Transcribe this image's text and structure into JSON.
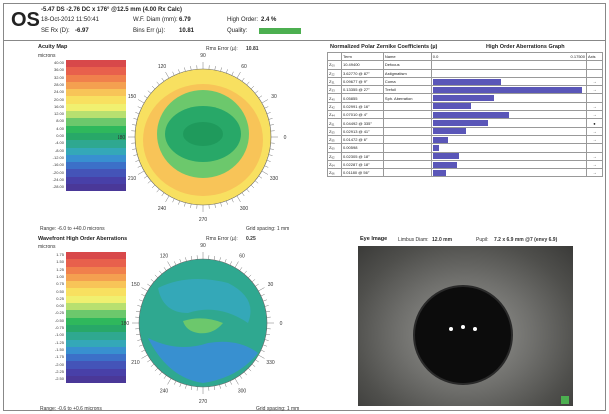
{
  "header": {
    "eye": "OS",
    "rx": "-5.47 DS -2.76 DC x 176° @12.5 mm (4.00 Rx Calc)",
    "datetime": "18-Oct-2012 11:50:41",
    "wf_diam_label": "W.F. Diam (mm):",
    "wf_diam_value": "6.79",
    "high_order_label": "High Order:",
    "high_order_value": "2.4 %",
    "se_label": "SE Rx (D):",
    "se_value": "-6.97",
    "bins_label": "Bins Err (µ):",
    "bins_value": "10.81",
    "quality_label": "Quality:"
  },
  "acuity_map": {
    "title": "Acuity Map",
    "unit": "microns",
    "rms_label": "Rms Error (µ):",
    "rms_value": "10.81",
    "range": "Range: -6.0 to +40.0 microns",
    "grid": "Grid spacing: 1 mm",
    "scale_labels": [
      "40.00",
      "36.00",
      "32.00",
      "28.00",
      "24.00",
      "20.00",
      "16.00",
      "12.00",
      "8.00",
      "4.00",
      "0.00",
      "-4.00",
      "-8.00",
      "-12.00",
      "-16.00",
      "-20.00",
      "-24.00",
      "-28.00"
    ],
    "scale_colors": [
      "#d8484a",
      "#e8604c",
      "#f0804c",
      "#f4a050",
      "#f8c458",
      "#f8e060",
      "#f0f070",
      "#b8e070",
      "#6cc86c",
      "#2fb85c",
      "#28a868",
      "#2fa890",
      "#34a8b8",
      "#3890d0",
      "#3c70c8",
      "#4454b8",
      "#4840a8",
      "#4a3898"
    ],
    "angles": [
      "90",
      "120",
      "150",
      "180",
      "210",
      "240",
      "270",
      "300",
      "330",
      "0",
      "30",
      "60"
    ]
  },
  "wavefront_map": {
    "title": "Wavefront High Order Aberrations",
    "unit": "microns",
    "rms_label": "Rms Error (µ):",
    "rms_value": "0.25",
    "range": "Range: -0.6 to +0.6 microns",
    "grid": "Grid spacing: 1 mm",
    "scale_labels": [
      "1.75",
      "1.50",
      "1.25",
      "1.00",
      "0.75",
      "0.50",
      "0.25",
      "0.00",
      "-0.25",
      "-0.50",
      "-0.75",
      "-1.00",
      "-1.25",
      "-1.50",
      "-1.75",
      "-2.00",
      "-2.25",
      "-2.50"
    ],
    "scale_colors": [
      "#d8484a",
      "#e8604c",
      "#f0804c",
      "#f4a050",
      "#f8c458",
      "#f8e060",
      "#f0f070",
      "#b8e070",
      "#6cc86c",
      "#2fb85c",
      "#28a868",
      "#2fa890",
      "#34a8b8",
      "#3890d0",
      "#3c70c8",
      "#4454b8",
      "#4840a8",
      "#4a3898"
    ],
    "angles": [
      "90",
      "120",
      "150",
      "180",
      "210",
      "240",
      "270",
      "300",
      "330",
      "0",
      "30",
      "60"
    ]
  },
  "coefficients": {
    "title": "Normalized Polar Zernike Coefficients (µ)",
    "graph_title": "High Order Aberrations Graph",
    "col_name": "Name",
    "col_term": "Term",
    "col_scale_min": "0.0",
    "col_scale_max": "0.17500",
    "col_axis": "Axis",
    "rows": [
      {
        "z": "Z₀₀",
        "val": "10.49400",
        "name": "Defocus",
        "bar": 0,
        "axis": ""
      },
      {
        "z": "Z₂₂",
        "val": "3.62770 @ 87°",
        "name": "Astigmatism",
        "bar": 0,
        "axis": ""
      },
      {
        "z": "Z₃₁",
        "val": "0.09677 @ 9°",
        "name": "Coma",
        "bar": 0.45,
        "axis": "→"
      },
      {
        "z": "Z₃₃",
        "val": "0.13355 @ 27°",
        "name": "Trefoil",
        "bar": 0.98,
        "axis": "→"
      },
      {
        "z": "Z₄₀",
        "val": "0.05855",
        "name": "Sph. Aberration",
        "bar": 0.4,
        "axis": ""
      },
      {
        "z": "Z₄₂",
        "val": "0.02991 @ 16°",
        "name": "",
        "bar": 0.25,
        "axis": "→"
      },
      {
        "z": "Z₄₄",
        "val": "0.07010 @ 4°",
        "name": "",
        "bar": 0.5,
        "axis": "→"
      },
      {
        "z": "Z₅₁",
        "val": "0.04492 @ 335°",
        "name": "",
        "bar": 0.36,
        "axis": "●"
      },
      {
        "z": "Z₅₃",
        "val": "0.02913 @ 41°",
        "name": "",
        "bar": 0.22,
        "axis": "→"
      },
      {
        "z": "Z₅₅",
        "val": "0.01472 @ 6°",
        "name": "",
        "bar": 0.1,
        "axis": "→"
      },
      {
        "z": "Z₆₀",
        "val": "0.00598",
        "name": "",
        "bar": 0.04,
        "axis": ""
      },
      {
        "z": "Z₆₂",
        "val": "0.02305 @ 18°",
        "name": "",
        "bar": 0.17,
        "axis": "→"
      },
      {
        "z": "Z₆₄",
        "val": "0.02287 @ 18°",
        "name": "",
        "bar": 0.16,
        "axis": "→"
      },
      {
        "z": "Z₆₆",
        "val": "0.01180 @ 56°",
        "name": "",
        "bar": 0.09,
        "axis": "→"
      }
    ]
  },
  "eye_image": {
    "title": "Eye Image",
    "limbus_label": "Limbus Diam:",
    "limbus_value": "12.0 mm",
    "pupil_label": "Pupil:",
    "pupil_value": "7.2 x 6.9 mm @7 (envy 6.9)"
  }
}
